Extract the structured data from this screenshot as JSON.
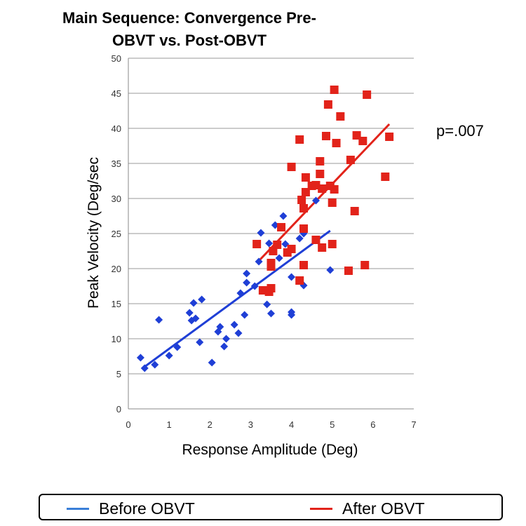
{
  "chart_data": {
    "type": "scatter",
    "title_lines": [
      "Main Sequence: Convergence Pre-",
      "OBVT vs. Post-OBVT"
    ],
    "xlabel": "Response Amplitude (Deg)",
    "ylabel": "Peak Velocity (Deg/sec",
    "xlim": [
      0,
      7
    ],
    "ylim": [
      0,
      50
    ],
    "xticks": [
      0,
      1,
      2,
      3,
      4,
      5,
      6,
      7
    ],
    "yticks": [
      0,
      5,
      10,
      15,
      20,
      25,
      30,
      35,
      40,
      45,
      50
    ],
    "grid": "horizontal",
    "annotation": "p=.007",
    "legend_position": "bottom",
    "series": [
      {
        "name": "Before OBVT",
        "color": "#1f3fd6",
        "legend_color": "#3a7fd8",
        "marker": "diamond",
        "points": [
          [
            0.3,
            7.3
          ],
          [
            0.4,
            5.8
          ],
          [
            0.65,
            6.3
          ],
          [
            0.75,
            12.7
          ],
          [
            1.0,
            7.6
          ],
          [
            1.2,
            8.8
          ],
          [
            1.5,
            13.7
          ],
          [
            1.55,
            12.6
          ],
          [
            1.6,
            15.1
          ],
          [
            1.65,
            12.9
          ],
          [
            1.75,
            9.5
          ],
          [
            1.8,
            15.6
          ],
          [
            2.05,
            6.6
          ],
          [
            2.2,
            11.0
          ],
          [
            2.25,
            11.7
          ],
          [
            2.35,
            8.9
          ],
          [
            2.4,
            10.0
          ],
          [
            2.6,
            12.0
          ],
          [
            2.7,
            10.8
          ],
          [
            2.75,
            16.5
          ],
          [
            2.85,
            13.4
          ],
          [
            2.9,
            18.0
          ],
          [
            2.9,
            19.3
          ],
          [
            3.1,
            17.5
          ],
          [
            3.2,
            21.0
          ],
          [
            3.25,
            25.1
          ],
          [
            3.4,
            14.9
          ],
          [
            3.45,
            23.6
          ],
          [
            3.5,
            13.6
          ],
          [
            3.6,
            26.2
          ],
          [
            3.7,
            21.5
          ],
          [
            3.8,
            27.5
          ],
          [
            3.85,
            23.5
          ],
          [
            4.0,
            13.4
          ],
          [
            4.0,
            13.8
          ],
          [
            4.0,
            18.8
          ],
          [
            4.2,
            24.3
          ],
          [
            4.3,
            17.6
          ],
          [
            4.3,
            25.0
          ],
          [
            4.6,
            29.7
          ],
          [
            4.95,
            19.8
          ]
        ],
        "trend": [
          [
            0.35,
            5.8
          ],
          [
            4.95,
            25.4
          ]
        ]
      },
      {
        "name": "After OBVT",
        "color": "#e2231a",
        "legend_color": "#e2231a",
        "marker": "square",
        "points": [
          [
            3.15,
            23.5
          ],
          [
            3.3,
            16.9
          ],
          [
            3.45,
            16.7
          ],
          [
            3.5,
            17.2
          ],
          [
            3.5,
            20.8
          ],
          [
            3.5,
            20.3
          ],
          [
            3.55,
            22.5
          ],
          [
            3.65,
            23.4
          ],
          [
            3.75,
            25.9
          ],
          [
            3.9,
            22.3
          ],
          [
            4.0,
            22.8
          ],
          [
            4.0,
            34.5
          ],
          [
            4.2,
            38.4
          ],
          [
            4.2,
            18.3
          ],
          [
            4.25,
            29.8
          ],
          [
            4.3,
            28.6
          ],
          [
            4.3,
            20.5
          ],
          [
            4.3,
            25.7
          ],
          [
            4.35,
            30.9
          ],
          [
            4.35,
            33.0
          ],
          [
            4.5,
            31.8
          ],
          [
            4.6,
            24.1
          ],
          [
            4.6,
            31.9
          ],
          [
            4.7,
            33.5
          ],
          [
            4.7,
            35.3
          ],
          [
            4.75,
            31.4
          ],
          [
            4.75,
            23.0
          ],
          [
            4.85,
            38.9
          ],
          [
            4.9,
            43.4
          ],
          [
            4.95,
            31.8
          ],
          [
            5.0,
            29.4
          ],
          [
            5.0,
            23.5
          ],
          [
            5.05,
            31.3
          ],
          [
            5.05,
            45.5
          ],
          [
            5.1,
            37.9
          ],
          [
            5.2,
            41.7
          ],
          [
            5.4,
            19.7
          ],
          [
            5.45,
            35.5
          ],
          [
            5.55,
            28.2
          ],
          [
            5.6,
            39.0
          ],
          [
            5.75,
            38.2
          ],
          [
            5.8,
            20.5
          ],
          [
            5.85,
            44.8
          ],
          [
            6.3,
            33.1
          ],
          [
            6.4,
            38.8
          ]
        ],
        "trend": [
          [
            3.15,
            20.8
          ],
          [
            6.4,
            40.6
          ]
        ]
      }
    ]
  }
}
